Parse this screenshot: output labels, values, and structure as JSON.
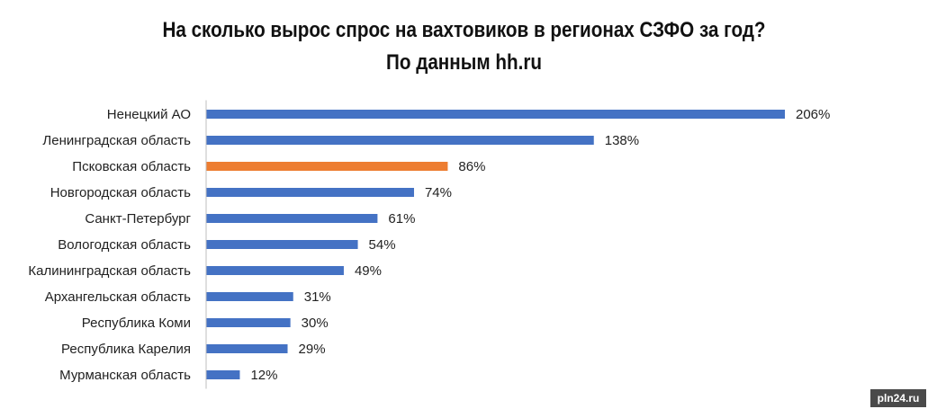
{
  "chart_data": {
    "type": "bar",
    "orientation": "horizontal",
    "title": "На сколько вырос спрос на вахтовиков в регионах СЗФО за год?",
    "subtitle": "По данным hh.ru",
    "categories": [
      "Ненецкий АО",
      "Ленинградская область",
      "Псковская область",
      "Новгородская область",
      "Санкт-Петербург",
      "Вологодская область",
      "Калининградская область",
      "Архангельская область",
      "Республика Коми",
      "Республика Карелия",
      "Мурманская область"
    ],
    "values": [
      206,
      138,
      86,
      74,
      61,
      54,
      49,
      31,
      30,
      29,
      12
    ],
    "value_labels": [
      "206%",
      "138%",
      "86%",
      "74%",
      "61%",
      "54%",
      "49%",
      "31%",
      "30%",
      "29%",
      "12%"
    ],
    "highlight_index": 2,
    "colors": {
      "bar": "#4472C4",
      "highlight": "#ED7D31",
      "axis": "#BFBFBF"
    },
    "xlim": [
      0,
      206
    ],
    "grid": false,
    "legend": "none"
  },
  "watermark": "pln24.ru"
}
